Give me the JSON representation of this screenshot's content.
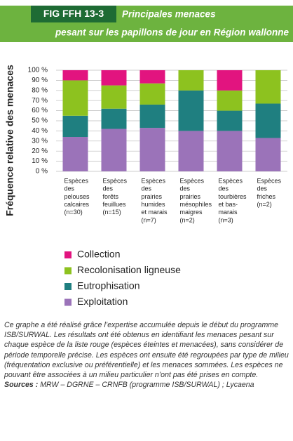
{
  "chart_data": {
    "type": "stacked_bar",
    "figure_label": "FIG FFH 13-3",
    "title": "Principales menaces",
    "subtitle": "pesant sur les papillons de jour en Région wallonne",
    "y_label": "Fréquence relative des menaces",
    "categories": [
      [
        "Espèces",
        "des",
        "pelouses",
        "calcaires",
        "(n=30)"
      ],
      [
        "Espèces",
        "des",
        "forêts",
        "feuillues",
        "(n=15)"
      ],
      [
        "Espèces",
        "des",
        "prairies",
        "humides",
        "et marais",
        "(n=7)"
      ],
      [
        "Espèces",
        "des",
        "prairies",
        "mésophiles",
        "maigres",
        "(n=2)"
      ],
      [
        "Espèces",
        "des",
        "tourbières",
        "et bas-",
        "marais",
        "(n=3)"
      ],
      [
        "Espèces",
        "des",
        "friches",
        "(n=2)"
      ]
    ],
    "series": [
      {
        "name": "Exploitation",
        "color": "#9b73b9",
        "values": [
          34,
          42,
          43,
          40,
          40,
          33
        ]
      },
      {
        "name": "Eutrophisation",
        "color": "#1f7f80",
        "values": [
          21,
          20,
          23,
          40,
          20,
          34
        ]
      },
      {
        "name": "Recolonisation ligneuse",
        "color": "#8dc21f",
        "values": [
          35,
          23,
          21,
          20,
          20,
          33
        ]
      },
      {
        "name": "Collection",
        "color": "#e2147f",
        "values": [
          10,
          15,
          13,
          0,
          20,
          0
        ]
      }
    ],
    "ylim": [
      0,
      100
    ],
    "yticks": [
      {
        "value": 0,
        "label": "0 %"
      },
      {
        "value": 10,
        "label": "10 %"
      },
      {
        "value": 20,
        "label": "20 %"
      },
      {
        "value": 30,
        "label": "30 %"
      },
      {
        "value": 40,
        "label": "40 %"
      },
      {
        "value": 50,
        "label": "50 %"
      },
      {
        "value": 60,
        "label": "60 %"
      },
      {
        "value": 70,
        "label": "70 %"
      },
      {
        "value": 80,
        "label": "80 %"
      },
      {
        "value": 90,
        "label": "90 %"
      },
      {
        "value": 100,
        "label": "100 %"
      }
    ],
    "grid": true,
    "note": "Ce graphe a été réalisé grâce l’expertise accumulée depuis le début du programme ISB/SURWAL. Les résultats ont été obtenus en identifiant les menaces pesant sur chaque espèce de la liste rouge (espèces éteintes et menacées), sans considérer de période temporelle précise. Les espèces ont ensuite été regroupées par type de milieu (fréquentation exclusive ou préférentielle) et les menaces sommées. Les espèces ne pouvant être associées à un milieu particulier n’ont pas été prises en compte.",
    "sources_label": "Sources :",
    "sources": "MRW – DGRNE – CRNFB (programme ISB/SURWAL) ; Lycaena"
  }
}
